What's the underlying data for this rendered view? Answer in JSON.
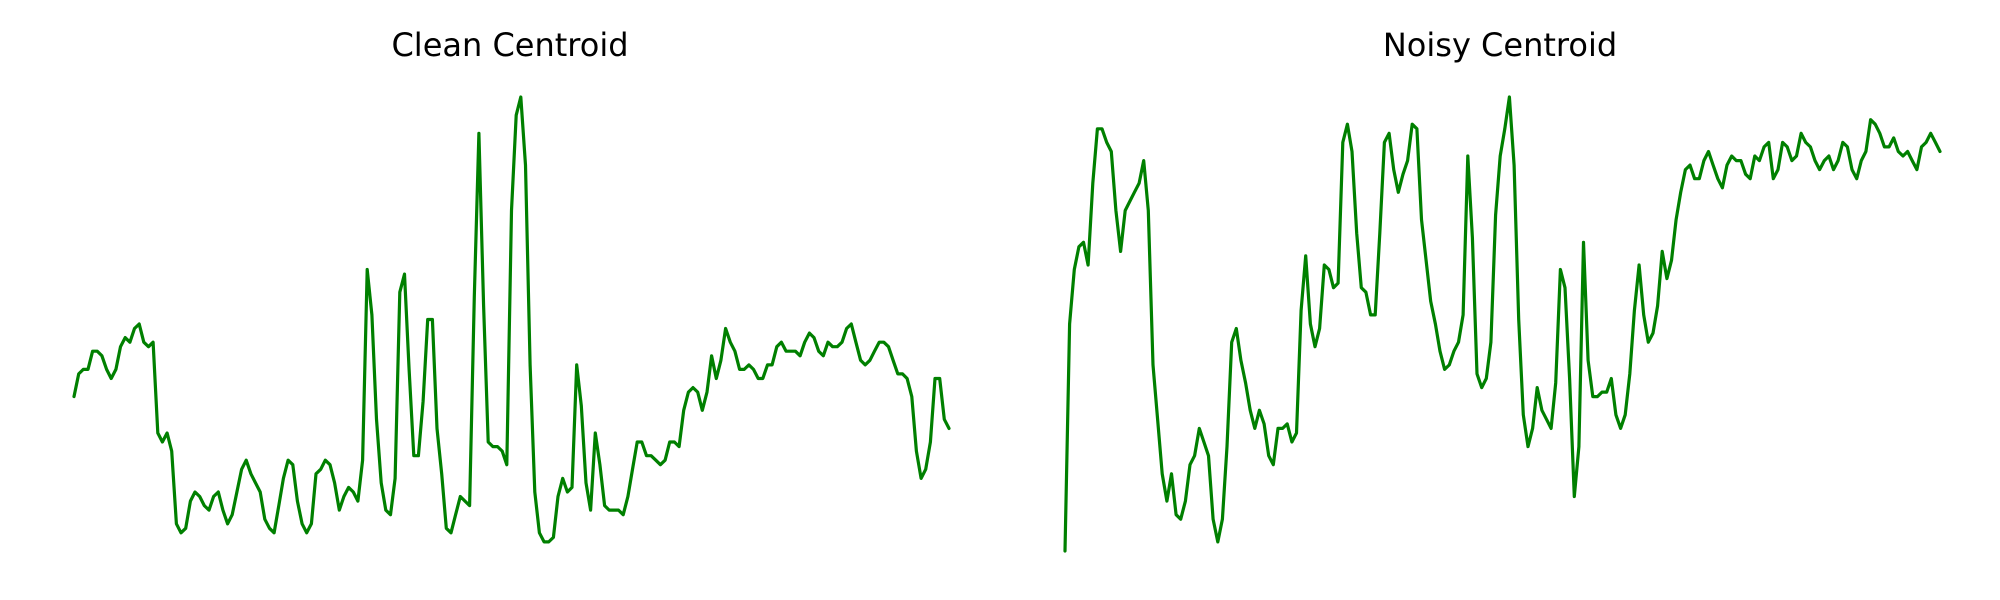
{
  "chart_data": [
    {
      "type": "line",
      "title": "Clean Centroid",
      "axes_visible": false,
      "grid": false,
      "ylim": [
        0,
        1
      ],
      "series": [
        {
          "color": "#008000",
          "values": [
            0.34,
            0.39,
            0.4,
            0.4,
            0.44,
            0.44,
            0.43,
            0.4,
            0.38,
            0.4,
            0.45,
            0.47,
            0.46,
            0.49,
            0.5,
            0.46,
            0.45,
            0.46,
            0.26,
            0.24,
            0.26,
            0.22,
            0.06,
            0.04,
            0.05,
            0.11,
            0.13,
            0.12,
            0.1,
            0.09,
            0.12,
            0.13,
            0.09,
            0.06,
            0.08,
            0.13,
            0.18,
            0.2,
            0.17,
            0.15,
            0.13,
            0.07,
            0.05,
            0.04,
            0.1,
            0.16,
            0.2,
            0.19,
            0.11,
            0.06,
            0.04,
            0.06,
            0.17,
            0.18,
            0.2,
            0.19,
            0.15,
            0.09,
            0.12,
            0.14,
            0.13,
            0.11,
            0.2,
            0.62,
            0.52,
            0.29,
            0.15,
            0.09,
            0.08,
            0.16,
            0.57,
            0.61,
            0.4,
            0.21,
            0.21,
            0.33,
            0.51,
            0.51,
            0.27,
            0.17,
            0.05,
            0.04,
            0.08,
            0.12,
            0.11,
            0.1,
            0.56,
            0.92,
            0.54,
            0.24,
            0.23,
            0.23,
            0.22,
            0.19,
            0.75,
            0.96,
            1.0,
            0.85,
            0.41,
            0.13,
            0.04,
            0.02,
            0.02,
            0.03,
            0.12,
            0.16,
            0.13,
            0.14,
            0.41,
            0.32,
            0.15,
            0.09,
            0.26,
            0.19,
            0.1,
            0.09,
            0.09,
            0.09,
            0.08,
            0.12,
            0.18,
            0.24,
            0.24,
            0.21,
            0.21,
            0.2,
            0.19,
            0.2,
            0.24,
            0.24,
            0.23,
            0.31,
            0.35,
            0.36,
            0.35,
            0.31,
            0.35,
            0.43,
            0.38,
            0.42,
            0.49,
            0.46,
            0.44,
            0.4,
            0.4,
            0.41,
            0.4,
            0.38,
            0.38,
            0.41,
            0.41,
            0.45,
            0.46,
            0.44,
            0.44,
            0.44,
            0.43,
            0.46,
            0.48,
            0.47,
            0.44,
            0.43,
            0.46,
            0.45,
            0.45,
            0.46,
            0.49,
            0.5,
            0.46,
            0.42,
            0.41,
            0.42,
            0.44,
            0.46,
            0.46,
            0.45,
            0.42,
            0.39,
            0.39,
            0.38,
            0.34,
            0.22,
            0.16,
            0.18,
            0.24,
            0.38,
            0.38,
            0.29,
            0.27
          ]
        }
      ]
    },
    {
      "type": "line",
      "title": "Noisy Centroid",
      "axes_visible": false,
      "grid": false,
      "ylim": [
        0,
        1
      ],
      "series": [
        {
          "color": "#008000",
          "values": [
            0.0,
            0.5,
            0.62,
            0.67,
            0.68,
            0.63,
            0.81,
            0.93,
            0.93,
            0.9,
            0.88,
            0.75,
            0.66,
            0.75,
            0.77,
            0.79,
            0.81,
            0.86,
            0.75,
            0.41,
            0.29,
            0.17,
            0.11,
            0.17,
            0.08,
            0.07,
            0.11,
            0.19,
            0.21,
            0.27,
            0.24,
            0.21,
            0.07,
            0.02,
            0.07,
            0.23,
            0.46,
            0.49,
            0.42,
            0.37,
            0.31,
            0.27,
            0.31,
            0.28,
            0.21,
            0.19,
            0.27,
            0.27,
            0.28,
            0.24,
            0.26,
            0.53,
            0.65,
            0.5,
            0.45,
            0.49,
            0.63,
            0.62,
            0.58,
            0.59,
            0.9,
            0.94,
            0.88,
            0.7,
            0.58,
            0.57,
            0.52,
            0.52,
            0.7,
            0.9,
            0.92,
            0.84,
            0.79,
            0.83,
            0.86,
            0.94,
            0.93,
            0.73,
            0.64,
            0.55,
            0.5,
            0.44,
            0.4,
            0.41,
            0.44,
            0.46,
            0.52,
            0.87,
            0.69,
            0.39,
            0.36,
            0.38,
            0.46,
            0.74,
            0.87,
            0.93,
            1.0,
            0.85,
            0.51,
            0.3,
            0.23,
            0.27,
            0.36,
            0.31,
            0.29,
            0.27,
            0.37,
            0.62,
            0.58,
            0.38,
            0.12,
            0.23,
            0.68,
            0.42,
            0.34,
            0.34,
            0.35,
            0.35,
            0.38,
            0.3,
            0.27,
            0.3,
            0.39,
            0.53,
            0.63,
            0.52,
            0.46,
            0.48,
            0.54,
            0.66,
            0.6,
            0.64,
            0.73,
            0.79,
            0.84,
            0.85,
            0.82,
            0.82,
            0.86,
            0.88,
            0.85,
            0.82,
            0.8,
            0.85,
            0.87,
            0.86,
            0.86,
            0.83,
            0.82,
            0.87,
            0.86,
            0.89,
            0.9,
            0.82,
            0.84,
            0.9,
            0.89,
            0.86,
            0.87,
            0.92,
            0.9,
            0.89,
            0.86,
            0.84,
            0.86,
            0.87,
            0.84,
            0.86,
            0.9,
            0.89,
            0.84,
            0.82,
            0.86,
            0.88,
            0.95,
            0.94,
            0.92,
            0.89,
            0.89,
            0.91,
            0.88,
            0.87,
            0.88,
            0.86,
            0.84,
            0.89,
            0.9,
            0.92,
            0.9,
            0.88
          ]
        }
      ]
    }
  ]
}
